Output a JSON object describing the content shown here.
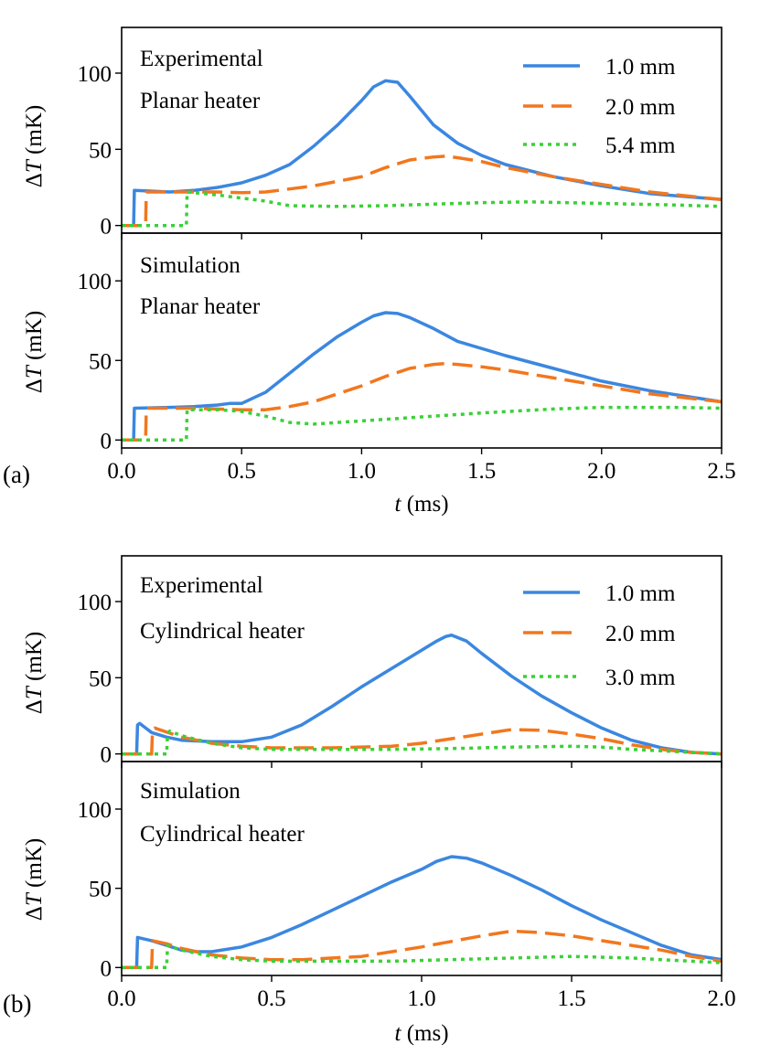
{
  "chart_data": [
    {
      "type": "line",
      "panel_label": "(a)",
      "ylabel_delta": "Δ",
      "ylabel_var": "T",
      "ylabel_unit": " (mK)",
      "xlabel_var": "t",
      "xlabel_unit": " (ms)",
      "xlim": [
        0,
        2.5
      ],
      "ylim": [
        -5,
        130
      ],
      "xticks": [
        0.0,
        0.5,
        1.0,
        1.5,
        2.0,
        2.5
      ],
      "xtick_labels": [
        "0.0",
        "0.5",
        "1.0",
        "1.5",
        "2.0",
        "2.5"
      ],
      "yticks": [
        0,
        50,
        100
      ],
      "ytick_labels": [
        "0",
        "50",
        "100"
      ],
      "legend": [
        "1.0 mm",
        "2.0 mm",
        "5.4 mm"
      ],
      "subplots": [
        {
          "annotations": [
            "Experimental",
            "Planar heater"
          ],
          "series": [
            {
              "name": "1.0 mm",
              "color": "#3b87e0",
              "style": "solid",
              "x": [
                0,
                0.05,
                0.053,
                0.1,
                0.2,
                0.3,
                0.4,
                0.5,
                0.6,
                0.7,
                0.8,
                0.9,
                1.0,
                1.05,
                1.1,
                1.15,
                1.2,
                1.3,
                1.4,
                1.5,
                1.6,
                1.8,
                2.0,
                2.2,
                2.5
              ],
              "y": [
                0,
                0,
                23,
                22.8,
                22,
                23,
                25,
                28,
                33,
                40,
                52,
                66,
                82,
                91,
                95,
                94,
                85,
                66,
                54,
                46,
                40,
                32,
                26,
                21,
                17
              ]
            },
            {
              "name": "2.0 mm",
              "color": "#f2771e",
              "style": "dashed",
              "x": [
                0,
                0.1,
                0.103,
                0.2,
                0.3,
                0.4,
                0.5,
                0.6,
                0.7,
                0.8,
                0.9,
                1.0,
                1.1,
                1.2,
                1.3,
                1.35,
                1.4,
                1.5,
                1.6,
                1.8,
                2.0,
                2.2,
                2.5
              ],
              "y": [
                0,
                0,
                22,
                22,
                22,
                22,
                21.5,
                22,
                24,
                26,
                29,
                32,
                38,
                43,
                45,
                45.5,
                44.5,
                42,
                38,
                32,
                27,
                22,
                17
              ]
            },
            {
              "name": "5.4 mm",
              "color": "#3ad137",
              "style": "dotted",
              "x": [
                0,
                0.27,
                0.273,
                0.4,
                0.5,
                0.6,
                0.7,
                0.9,
                1.1,
                1.3,
                1.5,
                1.7,
                2.0,
                2.3,
                2.5
              ],
              "y": [
                0,
                0,
                22,
                20,
                18,
                16,
                13,
                12.5,
                13,
                14,
                15,
                15.5,
                14.5,
                13.5,
                12.5
              ]
            }
          ]
        },
        {
          "annotations": [
            "Simulation",
            "Planar heater"
          ],
          "series": [
            {
              "name": "1.0 mm",
              "color": "#3b87e0",
              "style": "solid",
              "x": [
                0,
                0.05,
                0.053,
                0.2,
                0.3,
                0.4,
                0.45,
                0.5,
                0.6,
                0.7,
                0.8,
                0.9,
                1.0,
                1.05,
                1.1,
                1.15,
                1.2,
                1.3,
                1.4,
                1.6,
                1.8,
                2.0,
                2.2,
                2.5
              ],
              "y": [
                0,
                0,
                20,
                20.5,
                21,
                22,
                23,
                23,
                30,
                42,
                54,
                65,
                74,
                78,
                80,
                79.5,
                77,
                70,
                62,
                53,
                45,
                37,
                31,
                24
              ]
            },
            {
              "name": "2.0 mm",
              "color": "#f2771e",
              "style": "dashed",
              "x": [
                0,
                0.1,
                0.103,
                0.2,
                0.3,
                0.4,
                0.5,
                0.6,
                0.7,
                0.8,
                0.9,
                1.0,
                1.1,
                1.2,
                1.3,
                1.35,
                1.4,
                1.5,
                1.6,
                1.8,
                2.0,
                2.2,
                2.5
              ],
              "y": [
                0,
                0,
                20,
                20,
                20,
                19.5,
                19,
                19,
                21,
                24,
                29,
                34,
                40,
                45,
                47.5,
                48,
                47.5,
                46,
                44,
                39,
                34,
                29,
                24
              ]
            },
            {
              "name": "5.4 mm",
              "color": "#3ad137",
              "style": "dotted",
              "x": [
                0,
                0.27,
                0.273,
                0.4,
                0.5,
                0.6,
                0.7,
                0.8,
                1.0,
                1.2,
                1.5,
                1.8,
                2.0,
                2.3,
                2.5
              ],
              "y": [
                0,
                0,
                19,
                19,
                18,
                15,
                11,
                10,
                12,
                14,
                17,
                19.5,
                20.5,
                20.5,
                20
              ]
            }
          ]
        }
      ]
    },
    {
      "type": "line",
      "panel_label": "(b)",
      "ylabel_delta": "Δ",
      "ylabel_var": "T",
      "ylabel_unit": " (mK)",
      "xlabel_var": "t",
      "xlabel_unit": " (ms)",
      "xlim": [
        0,
        2.0
      ],
      "ylim": [
        -5,
        130
      ],
      "xticks": [
        0.0,
        0.5,
        1.0,
        1.5,
        2.0
      ],
      "xtick_labels": [
        "0.0",
        "0.5",
        "1.0",
        "1.5",
        "2.0"
      ],
      "yticks": [
        0,
        50,
        100
      ],
      "ytick_labels": [
        "0",
        "50",
        "100"
      ],
      "legend": [
        "1.0 mm",
        "2.0 mm",
        "3.0 mm"
      ],
      "subplots": [
        {
          "annotations": [
            "Experimental",
            "Cylindrical heater"
          ],
          "series": [
            {
              "name": "1.0 mm",
              "color": "#3b87e0",
              "style": "solid",
              "x": [
                0,
                0.05,
                0.053,
                0.06,
                0.08,
                0.1,
                0.15,
                0.2,
                0.3,
                0.4,
                0.5,
                0.6,
                0.7,
                0.8,
                0.9,
                1.0,
                1.05,
                1.08,
                1.1,
                1.15,
                1.2,
                1.3,
                1.4,
                1.5,
                1.6,
                1.7,
                1.8,
                1.9,
                2.0
              ],
              "y": [
                0,
                0,
                19,
                20,
                17,
                14,
                11,
                9,
                8,
                8,
                11,
                19,
                31,
                44,
                56,
                68,
                74,
                77,
                78,
                74,
                66,
                51,
                38,
                27,
                17,
                9,
                4,
                1,
                0
              ]
            },
            {
              "name": "2.0 mm",
              "color": "#f2771e",
              "style": "dashed",
              "x": [
                0,
                0.1,
                0.103,
                0.11,
                0.2,
                0.3,
                0.4,
                0.5,
                0.7,
                0.9,
                1.0,
                1.1,
                1.2,
                1.3,
                1.4,
                1.5,
                1.6,
                1.7,
                1.8,
                1.9,
                2.0
              ],
              "y": [
                0,
                0,
                16,
                17,
                11,
                7,
                5,
                4,
                4,
                5,
                7,
                10,
                13,
                16,
                15.5,
                13,
                10,
                6,
                3,
                1,
                0
              ]
            },
            {
              "name": "3.0 mm",
              "color": "#3ad137",
              "style": "dotted",
              "x": [
                0,
                0.15,
                0.153,
                0.16,
                0.2,
                0.3,
                0.4,
                0.5,
                0.7,
                0.9,
                1.1,
                1.3,
                1.5,
                1.6,
                1.7,
                1.8,
                1.9,
                2.0
              ],
              "y": [
                0,
                0,
                13,
                15,
                12,
                7,
                4,
                3,
                3,
                3,
                3.5,
                4.5,
                5,
                4.5,
                3,
                2,
                1,
                0
              ]
            }
          ]
        },
        {
          "annotations": [
            "Simulation",
            "Cylindrical heater"
          ],
          "series": [
            {
              "name": "1.0 mm",
              "color": "#3b87e0",
              "style": "solid",
              "x": [
                0,
                0.05,
                0.053,
                0.1,
                0.15,
                0.2,
                0.25,
                0.3,
                0.4,
                0.5,
                0.6,
                0.7,
                0.8,
                0.9,
                1.0,
                1.05,
                1.1,
                1.15,
                1.2,
                1.3,
                1.4,
                1.5,
                1.6,
                1.7,
                1.8,
                1.9,
                2.0
              ],
              "y": [
                0,
                0,
                19,
                17,
                14,
                11,
                10,
                10,
                13,
                19,
                27,
                36,
                45,
                54,
                62,
                67,
                70,
                69,
                66,
                58,
                49,
                39,
                30,
                22,
                14,
                8,
                5
              ]
            },
            {
              "name": "2.0 mm",
              "color": "#f2771e",
              "style": "dashed",
              "x": [
                0,
                0.1,
                0.103,
                0.15,
                0.2,
                0.3,
                0.4,
                0.5,
                0.6,
                0.8,
                1.0,
                1.2,
                1.3,
                1.4,
                1.5,
                1.6,
                1.7,
                1.8,
                1.9,
                2.0
              ],
              "y": [
                0,
                0,
                17,
                15,
                12,
                8,
                6,
                5,
                5,
                7,
                13,
                20,
                23,
                22,
                20,
                17,
                14,
                11,
                7,
                4
              ]
            },
            {
              "name": "3.0 mm",
              "color": "#3ad137",
              "style": "dotted",
              "x": [
                0,
                0.15,
                0.153,
                0.2,
                0.3,
                0.4,
                0.5,
                0.7,
                0.9,
                1.1,
                1.3,
                1.5,
                1.7,
                1.8,
                1.9,
                2.0
              ],
              "y": [
                0,
                0,
                14,
                11,
                7,
                5,
                4,
                4,
                4,
                5,
                6,
                7,
                6,
                5,
                4,
                3
              ]
            }
          ]
        }
      ]
    }
  ]
}
